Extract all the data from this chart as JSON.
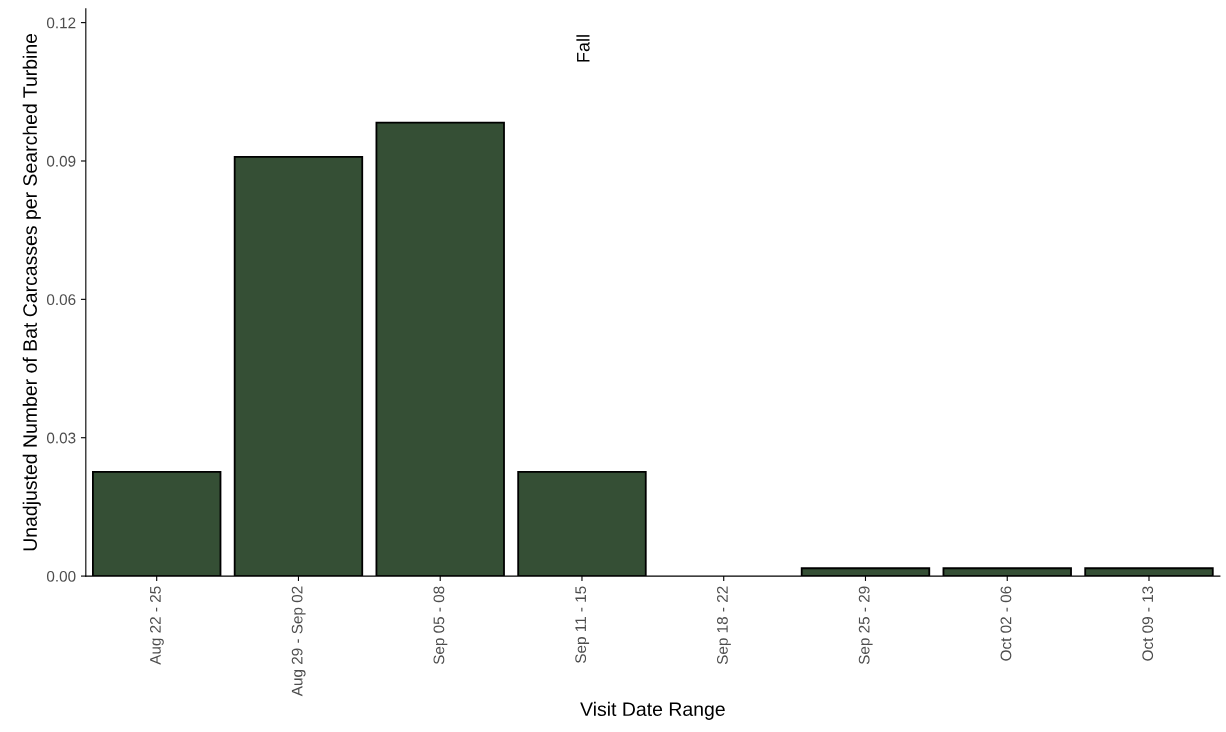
{
  "chart_data": {
    "type": "bar",
    "xlabel": "Visit Date Range",
    "ylabel": "Unadjusted Number of Bat Carcasses per Searched Turbine",
    "categories": [
      "Aug 22 - 25",
      "Aug 29 - Sep 02",
      "Sep 05 - 08",
      "Sep 11 - 15",
      "Sep 18 - 22",
      "Sep 25 - 29",
      "Oct 02 - 06",
      "Oct 09 - 13"
    ],
    "values": [
      0.0226,
      0.0909,
      0.0983,
      0.0226,
      0,
      0.0017,
      0.0017,
      0.0017
    ],
    "color": "#354f35",
    "ylim": [
      0,
      0.123
    ],
    "yticks": [
      {
        "value": 0,
        "label": "0.00"
      },
      {
        "value": 0.03,
        "label": "0.03"
      },
      {
        "value": 0.06,
        "label": "0.06"
      },
      {
        "value": 0.09,
        "label": "0.09"
      },
      {
        "value": 0.12,
        "label": "0.12"
      }
    ],
    "grid": false,
    "annotations": [
      "Fall"
    ]
  }
}
